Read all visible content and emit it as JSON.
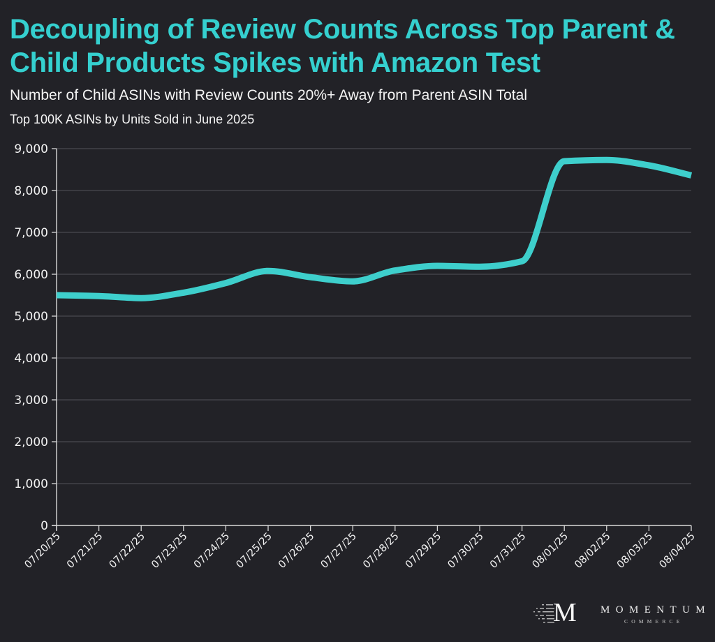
{
  "header": {
    "title": "Decoupling of Review Counts Across Top Parent & Child Products Spikes with Amazon Test",
    "subtitle": "Number of Child ASINs with Review Counts 20%+ Away from Parent ASIN Total",
    "subtitle2": "Top 100K ASINs by Units Sold in June 2025"
  },
  "colors": {
    "background": "#222227",
    "title": "#35d0cf",
    "line": "#3ecfcc",
    "grid": "#4a4a50",
    "axis": "#d9d9d9",
    "text": "#f2f2f2"
  },
  "chart_data": {
    "type": "line",
    "title": "Decoupling of Review Counts Across Top Parent & Child Products Spikes with Amazon Test",
    "subtitle": "Number of Child ASINs with Review Counts 20%+ Away from Parent ASIN Total",
    "xlabel": "",
    "ylabel": "",
    "x": [
      "07/20/25",
      "07/21/25",
      "07/22/25",
      "07/23/25",
      "07/24/25",
      "07/25/25",
      "07/26/25",
      "07/27/25",
      "07/28/25",
      "07/29/25",
      "07/30/25",
      "07/31/25",
      "08/01/25",
      "08/02/25",
      "08/03/25",
      "08/04/25"
    ],
    "series": [
      {
        "name": "Child ASINs 20%+ away from parent total",
        "values": [
          5500,
          5480,
          5430,
          5560,
          5790,
          6080,
          5930,
          5830,
          6090,
          6200,
          6180,
          6310,
          8700,
          8730,
          8600,
          8360
        ]
      }
    ],
    "ylim": [
      0,
      9000
    ],
    "yticks": [
      0,
      1000,
      2000,
      3000,
      4000,
      5000,
      6000,
      7000,
      8000,
      9000
    ],
    "ytick_labels": [
      "0",
      "1,000",
      "2,000",
      "3,000",
      "4,000",
      "5,000",
      "6,000",
      "7,000",
      "8,000",
      "9,000"
    ],
    "grid": "horizontal",
    "legend": "none"
  },
  "footer": {
    "logo_mark": "M",
    "logo_word": "MOMENTUM",
    "logo_sub": "COMMERCE"
  }
}
